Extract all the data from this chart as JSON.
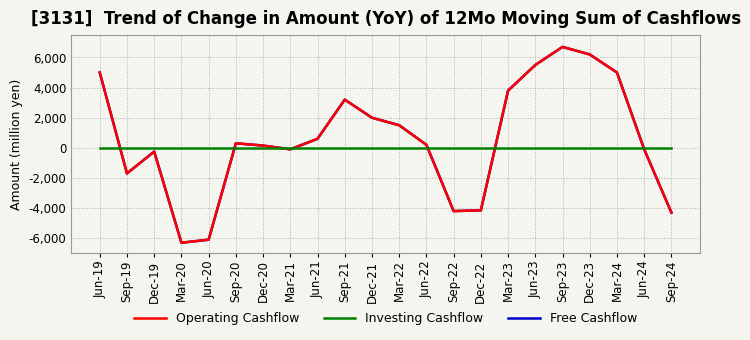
{
  "title": "[3131]  Trend of Change in Amount (YoY) of 12Mo Moving Sum of Cashflows",
  "ylabel": "Amount (million yen)",
  "x_labels": [
    "Jun-19",
    "Sep-19",
    "Dec-19",
    "Mar-20",
    "Jun-20",
    "Sep-20",
    "Dec-20",
    "Mar-21",
    "Jun-21",
    "Sep-21",
    "Dec-21",
    "Mar-22",
    "Jun-22",
    "Sep-22",
    "Dec-22",
    "Mar-23",
    "Jun-23",
    "Sep-23",
    "Dec-23",
    "Mar-24",
    "Jun-24",
    "Sep-24"
  ],
  "free_cashflow": [
    5000,
    -1700,
    -250,
    -6300,
    -6100,
    300,
    150,
    -100,
    600,
    3200,
    2000,
    1500,
    200,
    -4200,
    -4150,
    3800,
    5500,
    6700,
    6200,
    5000,
    -100,
    -4300
  ],
  "operating_cashflow": [
    5000,
    -1700,
    -250,
    -6300,
    -6100,
    300,
    150,
    -100,
    600,
    3200,
    2000,
    1500,
    200,
    -4200,
    -4150,
    3800,
    5500,
    6700,
    6200,
    5000,
    -100,
    -4300
  ],
  "investing_cashflow": [
    0,
    0,
    0,
    0,
    0,
    0,
    0,
    0,
    0,
    0,
    0,
    0,
    0,
    0,
    0,
    0,
    0,
    0,
    0,
    0,
    0,
    0
  ],
  "operating_color": "#ff0000",
  "investing_color": "#008000",
  "free_color": "#0000cd",
  "bg_color": "#f5f5f0",
  "plot_bg_color": "#f5f5f0",
  "ylim": [
    -7000,
    7500
  ],
  "yticks": [
    -6000,
    -4000,
    -2000,
    0,
    2000,
    4000,
    6000
  ],
  "grid_color": "#b0b0b0",
  "title_fontsize": 12,
  "axis_fontsize": 8.5,
  "ylabel_fontsize": 9,
  "legend_fontsize": 9,
  "linewidth": 1.8
}
